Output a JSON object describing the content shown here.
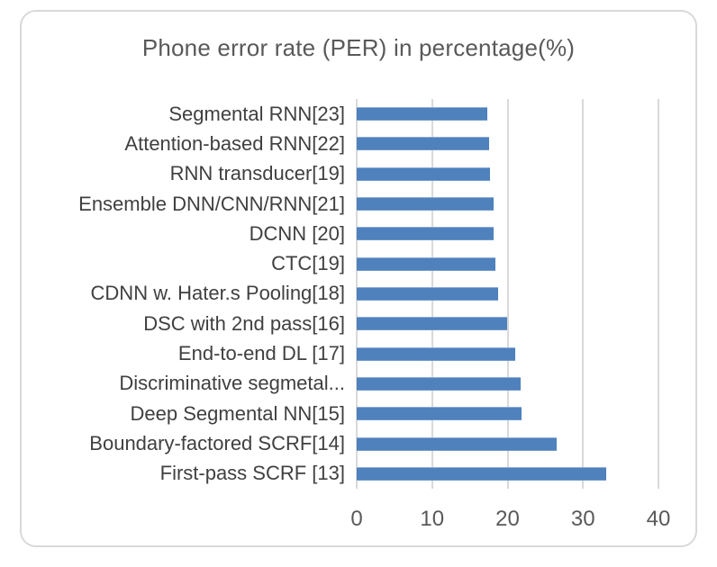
{
  "chart_data": {
    "type": "bar",
    "orientation": "horizontal",
    "title": "Phone error rate (PER) in percentage(%)",
    "categories": [
      "Segmental RNN[23]",
      "Attention-based RNN[22]",
      "RNN transducer[19]",
      "Ensemble DNN/CNN/RNN[21]",
      "DCNN [20]",
      "CTC[19]",
      "CDNN w. Hater.s Pooling[18]",
      "DSC with 2nd pass[16]",
      "End-to-end DL [17]",
      "Discriminative segmetal...",
      "Deep Segmental NN[15]",
      "Boundary-factored SCRF[14]",
      "First-pass SCRF [13]"
    ],
    "values": [
      17.3,
      17.6,
      17.7,
      18.2,
      18.2,
      18.4,
      18.7,
      19.9,
      21.0,
      21.7,
      21.9,
      26.5,
      33.1
    ],
    "xlabel": "",
    "ylabel": "",
    "xlim": [
      0,
      40
    ],
    "xticks": [
      0,
      10,
      20,
      30,
      40
    ],
    "grid": "vertical-on",
    "legend": "none",
    "bar_color": "#4f81bd",
    "gridline_color": "#d9d9d9",
    "title_color": "#595959",
    "label_color": "#404040",
    "tick_color": "#595959",
    "panel_border_color": "#d9d9d9"
  }
}
